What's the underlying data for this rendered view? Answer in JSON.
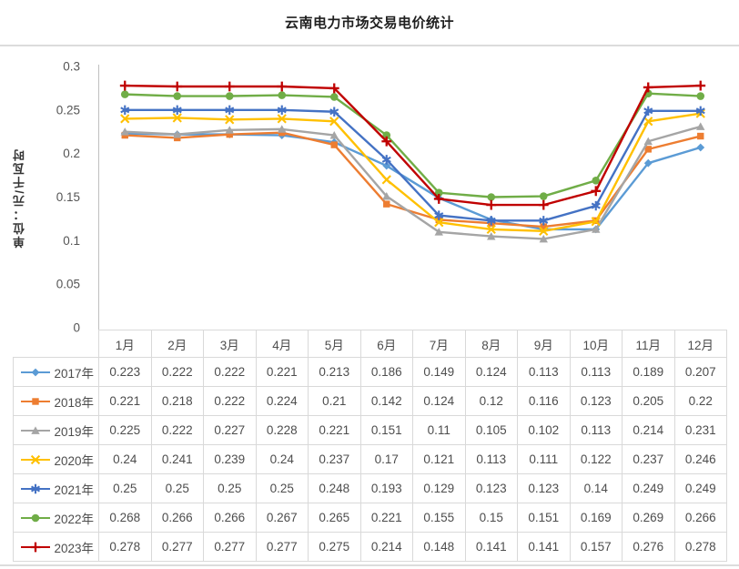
{
  "title": "云南电力市场交易电价统计",
  "chart_data": {
    "type": "line",
    "title": "云南电力市场交易电价统计",
    "xlabel": "",
    "ylabel": "单位：元/千瓦时",
    "ylim": [
      0,
      0.3
    ],
    "y_ticks": [
      0,
      0.05,
      0.1,
      0.15,
      0.2,
      0.25,
      0.3
    ],
    "grid": false,
    "legend_position": "data-table-left-column",
    "categories": [
      "1月",
      "2月",
      "3月",
      "4月",
      "5月",
      "6月",
      "7月",
      "8月",
      "9月",
      "10月",
      "11月",
      "12月"
    ],
    "series": [
      {
        "name": "2017年",
        "color": "#5B9BD5",
        "marker": "diamond",
        "values": [
          0.223,
          0.222,
          0.222,
          0.221,
          0.213,
          0.186,
          0.149,
          0.124,
          0.113,
          0.113,
          0.189,
          0.207
        ]
      },
      {
        "name": "2018年",
        "color": "#ED7D31",
        "marker": "square",
        "values": [
          0.221,
          0.218,
          0.222,
          0.224,
          0.21,
          0.142,
          0.124,
          0.12,
          0.116,
          0.123,
          0.205,
          0.22
        ]
      },
      {
        "name": "2019年",
        "color": "#A5A5A5",
        "marker": "triangle",
        "values": [
          0.225,
          0.222,
          0.227,
          0.228,
          0.221,
          0.151,
          0.11,
          0.105,
          0.102,
          0.113,
          0.214,
          0.231
        ]
      },
      {
        "name": "2020年",
        "color": "#FFC000",
        "marker": "x",
        "values": [
          0.24,
          0.241,
          0.239,
          0.24,
          0.237,
          0.17,
          0.121,
          0.113,
          0.111,
          0.122,
          0.237,
          0.246
        ]
      },
      {
        "name": "2021年",
        "color": "#4472C4",
        "marker": "asterisk",
        "values": [
          0.25,
          0.25,
          0.25,
          0.25,
          0.248,
          0.193,
          0.129,
          0.123,
          0.123,
          0.14,
          0.249,
          0.249
        ]
      },
      {
        "name": "2022年",
        "color": "#70AD47",
        "marker": "circle",
        "values": [
          0.268,
          0.266,
          0.266,
          0.267,
          0.265,
          0.221,
          0.155,
          0.15,
          0.151,
          0.169,
          0.269,
          0.266
        ]
      },
      {
        "name": "2023年",
        "color": "#C00000",
        "marker": "plus",
        "values": [
          0.278,
          0.277,
          0.277,
          0.277,
          0.275,
          0.214,
          0.148,
          0.141,
          0.141,
          0.157,
          0.276,
          0.278
        ]
      }
    ],
    "axis_color": "#c0c0c0",
    "tick_label_color": "#555555"
  }
}
